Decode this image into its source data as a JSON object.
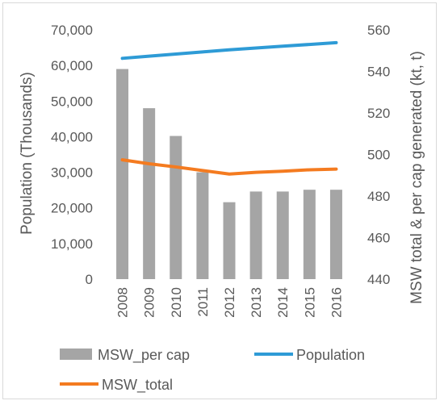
{
  "chart_data": {
    "type": "bar",
    "categories": [
      "2008",
      "2009",
      "2010",
      "2011",
      "2012",
      "2013",
      "2014",
      "2015",
      "2016"
    ],
    "series": [
      {
        "name": "MSW_per cap",
        "type": "bar",
        "axis": "left",
        "color": "#a5a5a5",
        "values": [
          59000,
          48000,
          40200,
          30000,
          21600,
          24600,
          24600,
          25100,
          25100
        ]
      },
      {
        "name": "Population",
        "type": "line",
        "axis": "left",
        "color": "#2e9bd6",
        "values": [
          62000,
          62600,
          63200,
          63800,
          64400,
          64900,
          65400,
          65900,
          66400
        ]
      },
      {
        "name": "MSW_total",
        "type": "line",
        "axis": "left",
        "color": "#f47b20",
        "values": [
          33500,
          32400,
          31500,
          30500,
          29500,
          30000,
          30300,
          30700,
          30900
        ]
      }
    ],
    "ylabel": "Population (Thousands)",
    "y2label": "MSW total & per cap generated (kt, t)",
    "ylim": [
      0,
      70000
    ],
    "y2lim": [
      440,
      560
    ],
    "yticks": [
      "0",
      "10,000",
      "20,000",
      "30,000",
      "40,000",
      "50,000",
      "60,000",
      "70,000"
    ],
    "y2ticks": [
      "440",
      "460",
      "480",
      "500",
      "520",
      "540",
      "560"
    ],
    "legend_position": "bottom",
    "grid": false
  }
}
